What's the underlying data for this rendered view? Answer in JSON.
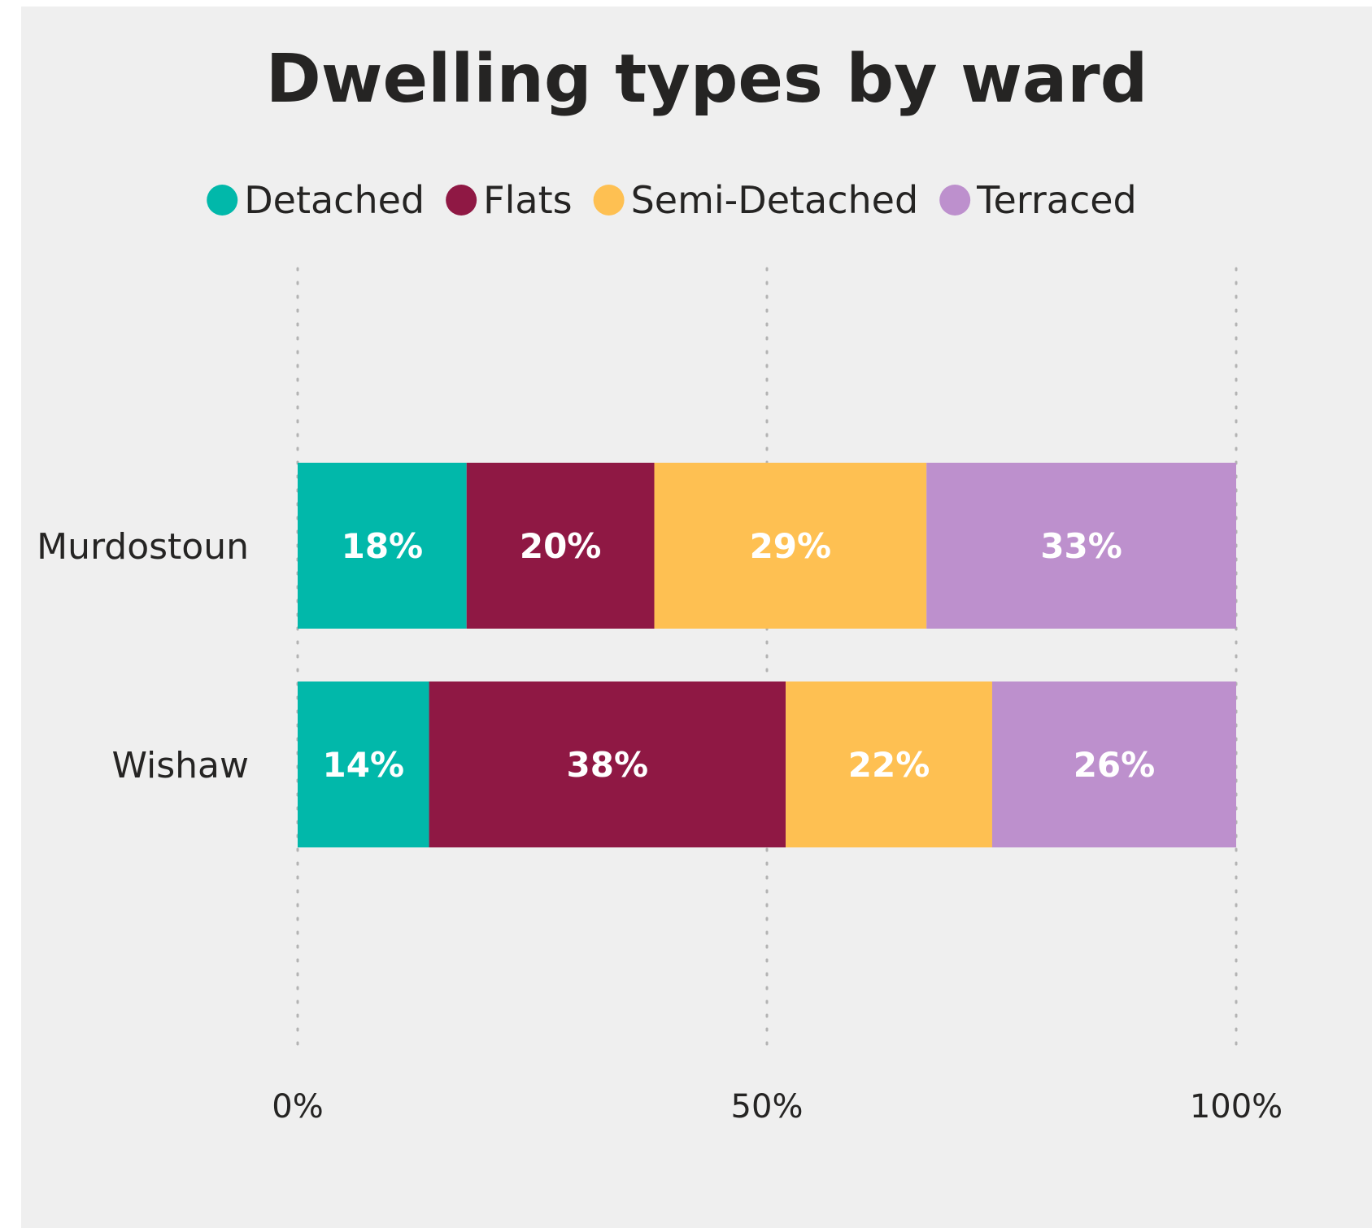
{
  "chart_data": {
    "type": "bar",
    "orientation": "horizontal",
    "stacked": "100%",
    "title": "Dwelling types by ward",
    "legend_position": "top",
    "categories": [
      "Murdostoun",
      "Wishaw"
    ],
    "series": [
      {
        "name": "Detached",
        "color": "#01b8aa",
        "values": [
          18,
          14
        ],
        "labels": [
          "18%",
          "14%"
        ]
      },
      {
        "name": "Flats",
        "color": "#8f1844",
        "values": [
          20,
          38
        ],
        "labels": [
          "20%",
          "38%"
        ]
      },
      {
        "name": "Semi-Detached",
        "color": "#fec052",
        "values": [
          29,
          22
        ],
        "labels": [
          "29%",
          "22%"
        ]
      },
      {
        "name": "Terraced",
        "color": "#bd90cd",
        "values": [
          33,
          26
        ],
        "labels": [
          "33%",
          "26%"
        ]
      }
    ],
    "xlim": [
      0,
      100
    ],
    "x_ticks": [
      0,
      50,
      100
    ],
    "x_tick_labels": [
      "0%",
      "50%",
      "100%"
    ],
    "grid": "vertical dotted"
  }
}
